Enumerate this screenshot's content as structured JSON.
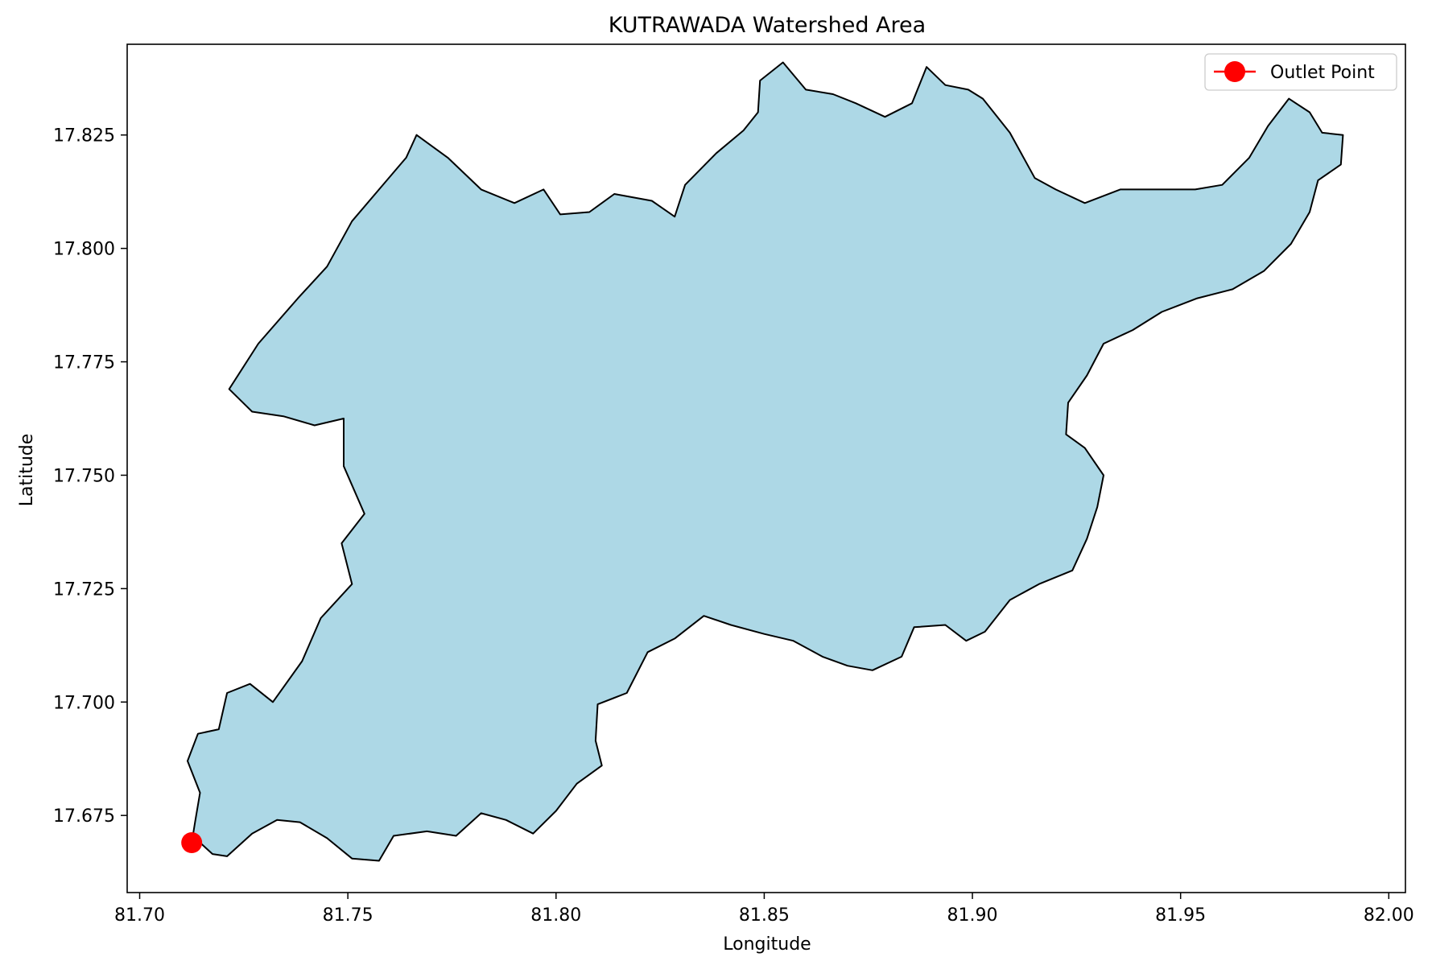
{
  "title": "KUTRAWADA Watershed Area",
  "xlabel": "Longitude",
  "ylabel": "Latitude",
  "colors": {
    "fill": "#add8e6",
    "outline": "#000000",
    "marker": "#ff0000"
  },
  "chart_data": {
    "type": "map",
    "xlim": [
      81.697,
      82.004
    ],
    "ylim": [
      17.658,
      17.845
    ],
    "xticks": [
      {
        "value": 81.7,
        "label": "81.70"
      },
      {
        "value": 81.75,
        "label": "81.75"
      },
      {
        "value": 81.8,
        "label": "81.80"
      },
      {
        "value": 81.85,
        "label": "81.85"
      },
      {
        "value": 81.9,
        "label": "81.90"
      },
      {
        "value": 81.95,
        "label": "81.95"
      },
      {
        "value": 82.0,
        "label": "82.00"
      }
    ],
    "yticks": [
      {
        "value": 17.675,
        "label": "17.675"
      },
      {
        "value": 17.7,
        "label": "17.700"
      },
      {
        "value": 17.725,
        "label": "17.725"
      },
      {
        "value": 17.75,
        "label": "17.750"
      },
      {
        "value": 17.775,
        "label": "17.775"
      },
      {
        "value": 17.8,
        "label": "17.800"
      },
      {
        "value": 17.825,
        "label": "17.825"
      }
    ],
    "watershed_boundary": [
      [
        81.7125,
        17.669
      ],
      [
        81.7133,
        17.6735
      ],
      [
        81.7145,
        17.68
      ],
      [
        81.7115,
        17.687
      ],
      [
        81.714,
        17.693
      ],
      [
        81.719,
        17.694
      ],
      [
        81.721,
        17.702
      ],
      [
        81.7265,
        17.704
      ],
      [
        81.732,
        17.7
      ],
      [
        81.739,
        17.709
      ],
      [
        81.7435,
        17.7185
      ],
      [
        81.751,
        17.726
      ],
      [
        81.7485,
        17.735
      ],
      [
        81.754,
        17.7415
      ],
      [
        81.749,
        17.752
      ],
      [
        81.749,
        17.7625
      ],
      [
        81.742,
        17.761
      ],
      [
        81.7345,
        17.763
      ],
      [
        81.727,
        17.764
      ],
      [
        81.7215,
        17.769
      ],
      [
        81.7285,
        17.779
      ],
      [
        81.738,
        17.789
      ],
      [
        81.745,
        17.796
      ],
      [
        81.751,
        17.806
      ],
      [
        81.7575,
        17.813
      ],
      [
        81.764,
        17.82
      ],
      [
        81.7665,
        17.825
      ],
      [
        81.774,
        17.82
      ],
      [
        81.782,
        17.813
      ],
      [
        81.79,
        17.81
      ],
      [
        81.797,
        17.813
      ],
      [
        81.801,
        17.8075
      ],
      [
        81.808,
        17.808
      ],
      [
        81.814,
        17.812
      ],
      [
        81.823,
        17.8105
      ],
      [
        81.8285,
        17.807
      ],
      [
        81.831,
        17.814
      ],
      [
        81.8385,
        17.821
      ],
      [
        81.845,
        17.826
      ],
      [
        81.8485,
        17.83
      ],
      [
        81.849,
        17.837
      ],
      [
        81.8545,
        17.841
      ],
      [
        81.86,
        17.835
      ],
      [
        81.8665,
        17.834
      ],
      [
        81.872,
        17.832
      ],
      [
        81.879,
        17.829
      ],
      [
        81.8855,
        17.832
      ],
      [
        81.889,
        17.84
      ],
      [
        81.8935,
        17.836
      ],
      [
        81.899,
        17.835
      ],
      [
        81.9025,
        17.833
      ],
      [
        81.909,
        17.8255
      ],
      [
        81.915,
        17.8155
      ],
      [
        81.92,
        17.813
      ],
      [
        81.927,
        17.81
      ],
      [
        81.9355,
        17.813
      ],
      [
        81.945,
        17.813
      ],
      [
        81.9535,
        17.813
      ],
      [
        81.96,
        17.814
      ],
      [
        81.9665,
        17.82
      ],
      [
        81.971,
        17.827
      ],
      [
        81.976,
        17.833
      ],
      [
        81.981,
        17.83
      ],
      [
        81.984,
        17.8255
      ],
      [
        81.989,
        17.825
      ],
      [
        81.9885,
        17.8185
      ],
      [
        81.983,
        17.815
      ],
      [
        81.981,
        17.808
      ],
      [
        81.9765,
        17.801
      ],
      [
        81.97,
        17.795
      ],
      [
        81.9625,
        17.791
      ],
      [
        81.954,
        17.789
      ],
      [
        81.9455,
        17.786
      ],
      [
        81.9385,
        17.782
      ],
      [
        81.9315,
        17.779
      ],
      [
        81.9275,
        17.772
      ],
      [
        81.923,
        17.766
      ],
      [
        81.9225,
        17.759
      ],
      [
        81.927,
        17.756
      ],
      [
        81.9315,
        17.75
      ],
      [
        81.93,
        17.743
      ],
      [
        81.9275,
        17.736
      ],
      [
        81.924,
        17.729
      ],
      [
        81.916,
        17.726
      ],
      [
        81.909,
        17.7225
      ],
      [
        81.903,
        17.7155
      ],
      [
        81.8985,
        17.7135
      ],
      [
        81.8935,
        17.717
      ],
      [
        81.886,
        17.7165
      ],
      [
        81.883,
        17.71
      ],
      [
        81.876,
        17.707
      ],
      [
        81.87,
        17.708
      ],
      [
        81.864,
        17.71
      ],
      [
        81.857,
        17.7135
      ],
      [
        81.85,
        17.715
      ],
      [
        81.842,
        17.717
      ],
      [
        81.8355,
        17.719
      ],
      [
        81.8285,
        17.714
      ],
      [
        81.822,
        17.711
      ],
      [
        81.817,
        17.702
      ],
      [
        81.81,
        17.6995
      ],
      [
        81.8095,
        17.6915
      ],
      [
        81.811,
        17.686
      ],
      [
        81.805,
        17.682
      ],
      [
        81.8,
        17.676
      ],
      [
        81.7945,
        17.671
      ],
      [
        81.788,
        17.674
      ],
      [
        81.782,
        17.6755
      ],
      [
        81.776,
        17.6705
      ],
      [
        81.769,
        17.6715
      ],
      [
        81.761,
        17.6705
      ],
      [
        81.7575,
        17.665
      ],
      [
        81.751,
        17.6655
      ],
      [
        81.745,
        17.67
      ],
      [
        81.7385,
        17.6735
      ],
      [
        81.733,
        17.674
      ],
      [
        81.727,
        17.671
      ],
      [
        81.721,
        17.666
      ],
      [
        81.7175,
        17.6665
      ],
      [
        81.7145,
        17.669
      ]
    ],
    "outlet_point": {
      "x": 81.7125,
      "y": 17.669,
      "label": "Outlet Point"
    },
    "legend_position": "upper right",
    "grid": false
  }
}
